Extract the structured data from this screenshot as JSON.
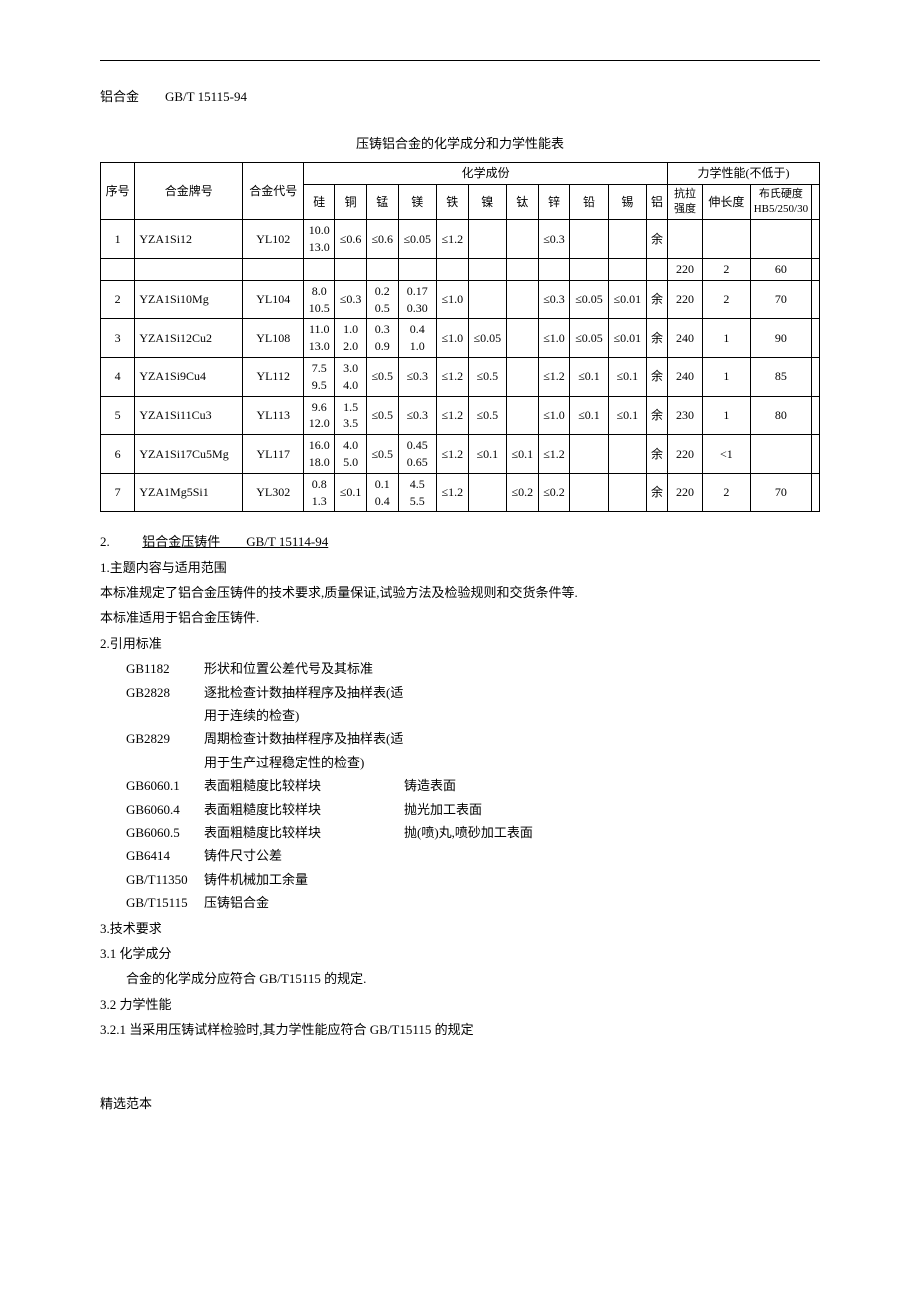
{
  "header_line": "铝合金　　GB/T 15115-94",
  "table_title": "压铸铝合金的化学成分和力学性能表",
  "table": {
    "col_seq": "序号",
    "col_grade": "合金牌号",
    "col_code": "合金代号",
    "col_chem": "化学成份",
    "col_mech": "力学性能(不低于)",
    "chem_headers": [
      "硅",
      "铜",
      "锰",
      "镁",
      "铁",
      "镍",
      "钛",
      "锌",
      "铅",
      "锡",
      "铝"
    ],
    "mech_headers": [
      "抗拉强度",
      "伸长度",
      "布氏硬度HB5/250/30"
    ],
    "rows": [
      {
        "n": "1",
        "grade": "YZA1Si12",
        "code": "YL102",
        "si": "10.0\n13.0",
        "cu": "≤0.6",
        "mn": "≤0.6",
        "mg": "≤0.05",
        "fe": "≤1.2",
        "ni": "",
        "ti": "",
        "zn": "≤0.3",
        "pb": "",
        "sn": "",
        "al": "余",
        "ts": "",
        "el": "",
        "hb": "",
        "extra": {
          "ts": "220",
          "el": "2",
          "hb": "60"
        }
      },
      {
        "n": "2",
        "grade": "YZA1Si10Mg",
        "code": "YL104",
        "si": "8.0\n10.5",
        "cu": "≤0.3",
        "mn": "0.2\n0.5",
        "mg": "0.17\n0.30",
        "fe": "≤1.0",
        "ni": "",
        "ti": "",
        "zn": "≤0.3",
        "pb": "≤0.05",
        "sn": "≤0.01",
        "al": "余",
        "ts": "220",
        "el": "2",
        "hb": "70"
      },
      {
        "n": "3",
        "grade": "YZA1Si12Cu2",
        "code": "YL108",
        "si": "11.0\n13.0",
        "cu": "1.0\n2.0",
        "mn": "0.3\n0.9",
        "mg": "0.4\n1.0",
        "fe": "≤1.0",
        "ni": "≤0.05",
        "ti": "",
        "zn": "≤1.0",
        "pb": "≤0.05",
        "sn": "≤0.01",
        "al": "余",
        "ts": "240",
        "el": "1",
        "hb": "90"
      },
      {
        "n": "4",
        "grade": "YZA1Si9Cu4",
        "code": "YL112",
        "si": "7.5\n9.5",
        "cu": "3.0\n4.0",
        "mn": "≤0.5",
        "mg": "≤0.3",
        "fe": "≤1.2",
        "ni": "≤0.5",
        "ti": "",
        "zn": "≤1.2",
        "pb": "≤0.1",
        "sn": "≤0.1",
        "al": "余",
        "ts": "240",
        "el": "1",
        "hb": "85"
      },
      {
        "n": "5",
        "grade": "YZA1Si11Cu3",
        "code": "YL113",
        "si": "9.6\n12.0",
        "cu": "1.5\n3.5",
        "mn": "≤0.5",
        "mg": "≤0.3",
        "fe": "≤1.2",
        "ni": "≤0.5",
        "ti": "",
        "zn": "≤1.0",
        "pb": "≤0.1",
        "sn": "≤0.1",
        "al": "余",
        "ts": "230",
        "el": "1",
        "hb": "80"
      },
      {
        "n": "6",
        "grade": "YZA1Si17Cu5Mg",
        "code": "YL117",
        "si": "16.0\n18.0",
        "cu": "4.0\n5.0",
        "mn": "≤0.5",
        "mg": "0.45\n0.65",
        "fe": "≤1.2",
        "ni": "≤0.1",
        "ti": "≤0.1",
        "zn": "≤1.2",
        "pb": "",
        "sn": "",
        "al": "余",
        "ts": "220",
        "el": "<1",
        "hb": ""
      },
      {
        "n": "7",
        "grade": "YZA1Mg5Si1",
        "code": "YL302",
        "si": "0.8\n1.3",
        "cu": "≤0.1",
        "mn": "0.1\n0.4",
        "mg": "4.5\n5.5",
        "fe": "≤1.2",
        "ni": "",
        "ti": "≤0.2",
        "zn": "≤0.2",
        "pb": "",
        "sn": "",
        "al": "余",
        "ts": "220",
        "el": "2",
        "hb": "70"
      }
    ]
  },
  "sec2_title": "2.",
  "sec2_link": "铝合金压铸件　　GB/T 15114-94",
  "p1_h": "1.主题内容与适用范围",
  "p1_1": "本标准规定了铝合金压铸件的技术要求,质量保证,试验方法及检验规则和交货条件等.",
  "p1_2": "本标准适用于铝合金压铸件.",
  "p2_h": "2.引用标准",
  "stds": [
    {
      "c": "GB1182",
      "d": "形状和位置公差代号及其标准",
      "e": ""
    },
    {
      "c": "GB2828",
      "d": "逐批检查计数抽样程序及抽样表(适用于连续的检查)",
      "e": ""
    },
    {
      "c": "GB2829",
      "d": "周期检查计数抽样程序及抽样表(适用于生产过程稳定性的检查)",
      "e": ""
    },
    {
      "c": "GB6060.1",
      "d": "表面粗糙度比较样块",
      "e": "铸造表面"
    },
    {
      "c": "GB6060.4",
      "d": "表面粗糙度比较样块",
      "e": "抛光加工表面"
    },
    {
      "c": "GB6060.5",
      "d": "表面粗糙度比较样块",
      "e": "抛(喷)丸,喷砂加工表面"
    },
    {
      "c": "GB6414",
      "d": "铸件尺寸公差",
      "e": ""
    },
    {
      "c": "GB/T11350",
      "d": "铸件机械加工余量",
      "e": ""
    },
    {
      "c": "GB/T15115",
      "d": "压铸铝合金",
      "e": ""
    }
  ],
  "p3_h": "3.技术要求",
  "p31_h": "3.1 化学成分",
  "p31_1": "合金的化学成分应符合 GB/T15115 的规定.",
  "p32_h": "3.2 力学性能",
  "p321": "3.2.1 当采用压铸试样检验时,其力学性能应符合 GB/T15115 的规定",
  "footer": "精选范本"
}
